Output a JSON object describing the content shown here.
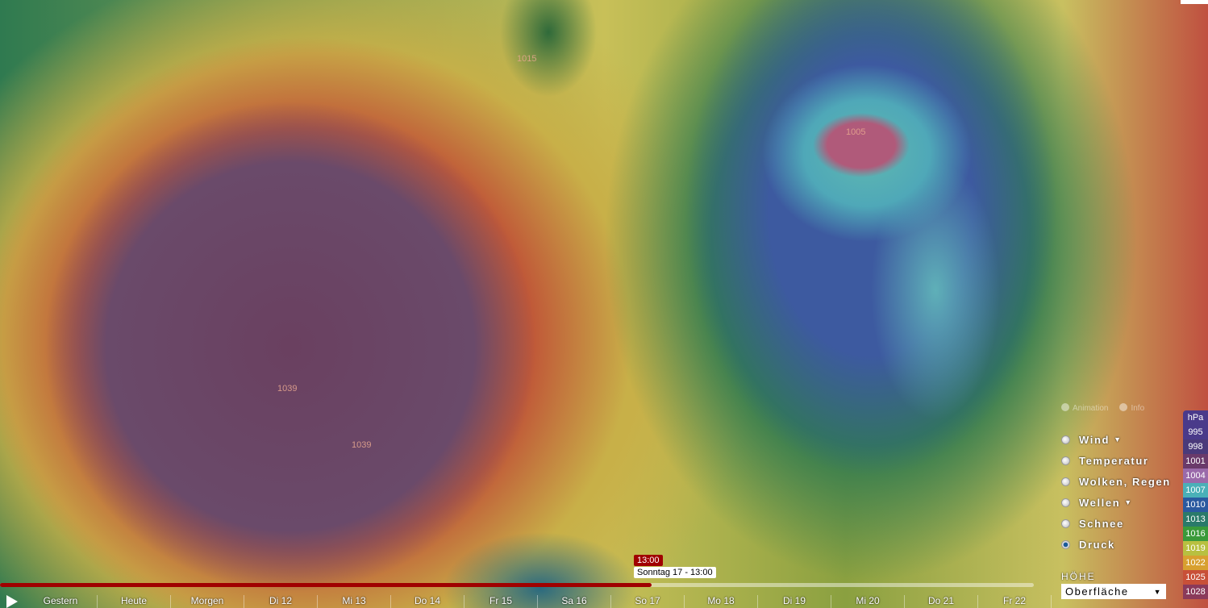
{
  "map": {
    "pressure_labels": [
      "1015",
      "1005",
      "1039",
      "1039"
    ]
  },
  "controls": {
    "animation": "Animation",
    "info": "Info"
  },
  "layers": [
    {
      "label": "Wind",
      "chevron": true,
      "selected": false
    },
    {
      "label": "Temperatur",
      "chevron": false,
      "selected": false
    },
    {
      "label": "Wolken, Regen",
      "chevron": false,
      "selected": false
    },
    {
      "label": "Wellen",
      "chevron": true,
      "selected": false
    },
    {
      "label": "Schnee",
      "chevron": false,
      "selected": false
    },
    {
      "label": "Druck",
      "chevron": false,
      "selected": true
    }
  ],
  "height": {
    "label": "HÖHE",
    "value": "Oberfläche"
  },
  "legend": {
    "unit": "hPa",
    "items": [
      {
        "v": "995",
        "c": "#4a3a8a"
      },
      {
        "v": "998",
        "c": "#4a3a7a"
      },
      {
        "v": "1001",
        "c": "#6a3a6a"
      },
      {
        "v": "1004",
        "c": "#9a6aaa"
      },
      {
        "v": "1007",
        "c": "#4ab0b8"
      },
      {
        "v": "1010",
        "c": "#2a5aa0"
      },
      {
        "v": "1013",
        "c": "#2a7a6a"
      },
      {
        "v": "1016",
        "c": "#3a9a3a"
      },
      {
        "v": "1019",
        "c": "#b8c040"
      },
      {
        "v": "1022",
        "c": "#d8a030"
      },
      {
        "v": "1025",
        "c": "#c85038"
      },
      {
        "v": "1028",
        "c": "#8a3a5a"
      }
    ]
  },
  "timeline": {
    "days": [
      "Gestern",
      "Heute",
      "Morgen",
      "Di 12",
      "Mi 13",
      "Do 14",
      "Fr 15",
      "Sa 16",
      "So 17",
      "Mo 18",
      "Di 19",
      "Mi 20",
      "Do 21",
      "Fr 22"
    ],
    "progress_percent": 63,
    "current_time": "13:00",
    "tooltip": "Sonntag 17 - 13:00",
    "accent": "#a00000"
  }
}
